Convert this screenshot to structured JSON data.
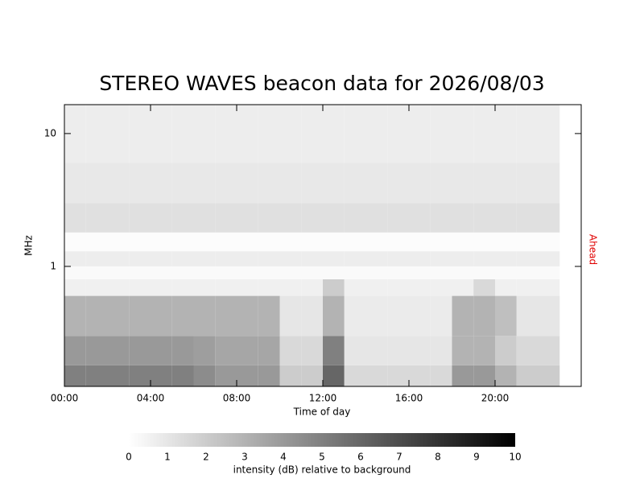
{
  "chart_data": {
    "type": "heatmap",
    "title": "STEREO WAVES beacon data for 2026/08/03",
    "x_label": "Time of day",
    "y_label": "MHz",
    "side_label": "Ahead",
    "side_label_color": "#e00000",
    "colorbar_label": "intensity (dB) relative to background",
    "xlim": [
      0,
      24
    ],
    "xticks": [
      {
        "value": 0,
        "label": "00:00"
      },
      {
        "value": 4,
        "label": "04:00"
      },
      {
        "value": 8,
        "label": "08:00"
      },
      {
        "value": 12,
        "label": "12:00"
      },
      {
        "value": 16,
        "label": "16:00"
      },
      {
        "value": 20,
        "label": "20:00"
      }
    ],
    "ylim": [
      0.125,
      16.5
    ],
    "yticks": [
      1,
      10
    ],
    "log_y": true,
    "x_bins": [
      0,
      1,
      2,
      3,
      4,
      5,
      6,
      7,
      8,
      9,
      10,
      11,
      12,
      13,
      14,
      15,
      16,
      17,
      18,
      19,
      20,
      21,
      22,
      23,
      24
    ],
    "y_bins": [
      0.125,
      0.18,
      0.3,
      0.6,
      0.8,
      1.0,
      1.3,
      1.8,
      3,
      6,
      16.5
    ],
    "z": [
      [
        5,
        5,
        5,
        5,
        5,
        5,
        4.5,
        4,
        4,
        4,
        2,
        2,
        6,
        1.5,
        1.5,
        1.5,
        1.5,
        1.5,
        4,
        4,
        3,
        2,
        2,
        null
      ],
      [
        4,
        4,
        4,
        4,
        4,
        4,
        3.8,
        3.5,
        3.5,
        3.5,
        1.5,
        1.5,
        5,
        1,
        1,
        1,
        1,
        1,
        3,
        3,
        2,
        1.5,
        1.5,
        null
      ],
      [
        3,
        3,
        3,
        3,
        3,
        3,
        3,
        3,
        3,
        3,
        1,
        1,
        3,
        0.8,
        0.8,
        0.8,
        0.8,
        0.8,
        3,
        3,
        2.5,
        1,
        1,
        null
      ],
      [
        0.6,
        0.6,
        0.6,
        0.6,
        0.6,
        0.6,
        0.6,
        0.6,
        0.6,
        0.6,
        0.6,
        0.6,
        2,
        0.6,
        0.6,
        0.6,
        0.6,
        0.6,
        0.6,
        1.5,
        0.6,
        0.6,
        0.6,
        null
      ],
      [
        0.2,
        0.2,
        0.2,
        0.2,
        0.2,
        0.2,
        0.2,
        0.2,
        0.2,
        0.2,
        0.2,
        0.2,
        0.2,
        0.2,
        0.2,
        0.2,
        0.2,
        0.2,
        0.2,
        0.2,
        0.2,
        0.2,
        0.2,
        null
      ],
      [
        0.7,
        0.7,
        0.7,
        0.7,
        0.7,
        0.7,
        0.7,
        0.7,
        0.7,
        0.7,
        0.7,
        0.7,
        0.7,
        0.7,
        0.7,
        0.7,
        0.7,
        0.7,
        0.7,
        0.7,
        0.7,
        0.7,
        0.7,
        null
      ],
      [
        0.1,
        0.1,
        0.1,
        0.1,
        0.1,
        0.1,
        0.1,
        0.1,
        0.1,
        0.1,
        0.1,
        0.1,
        0.1,
        0.1,
        0.1,
        0.1,
        0.1,
        0.1,
        0.1,
        0.1,
        0.1,
        0.1,
        0.1,
        null
      ],
      [
        1.2,
        1.2,
        1.2,
        1.2,
        1.2,
        1.2,
        1.2,
        1.2,
        1.2,
        1.2,
        1.2,
        1.2,
        1.2,
        1.2,
        1.2,
        1.2,
        1.2,
        1.2,
        1.2,
        1.2,
        1.2,
        1.2,
        1.2,
        null
      ],
      [
        0.9,
        0.9,
        0.9,
        0.9,
        0.9,
        0.9,
        0.9,
        0.9,
        0.9,
        0.9,
        0.9,
        0.9,
        0.9,
        0.9,
        0.9,
        0.9,
        0.9,
        0.9,
        0.9,
        0.9,
        0.9,
        0.9,
        0.9,
        null
      ],
      [
        0.7,
        0.7,
        0.7,
        0.7,
        0.7,
        0.7,
        0.7,
        0.7,
        0.7,
        0.7,
        0.7,
        0.7,
        0.7,
        0.7,
        0.7,
        0.7,
        0.7,
        0.7,
        0.7,
        0.7,
        0.7,
        0.7,
        0.7,
        null
      ]
    ],
    "clim": [
      0,
      10
    ],
    "cticks": [
      0,
      1,
      2,
      3,
      4,
      5,
      6,
      7,
      8,
      9,
      10
    ]
  }
}
